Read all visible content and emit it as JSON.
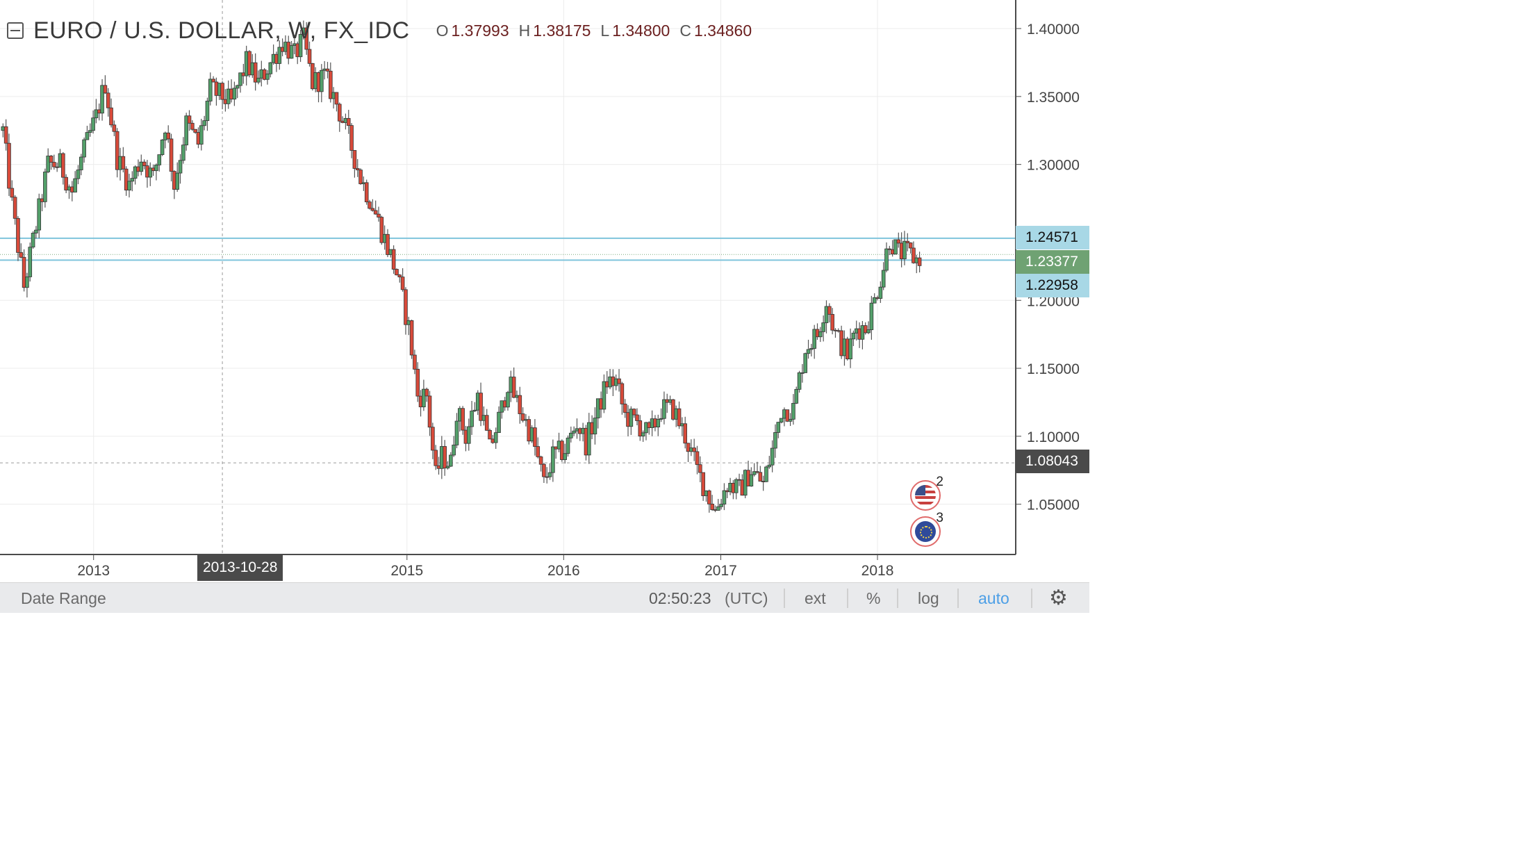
{
  "header": {
    "symbol_title": "EURO / U.S. DOLLAR, W, FX_IDC",
    "open_label": "O",
    "open_value": "1.37993",
    "high_label": "H",
    "high_value": "1.38175",
    "low_label": "L",
    "low_value": "1.34800",
    "close_label": "C",
    "close_value": "1.34860"
  },
  "price_labels": {
    "upper_line": "1.24571",
    "current_price": "1.23377",
    "lower_line": "1.22958",
    "crosshair_price": "1.08043"
  },
  "crosshair_date": "2013-10-28",
  "bottom_bar": {
    "date_range": "Date Range",
    "time": "02:50:23",
    "timezone": "(UTC)",
    "ext": "ext",
    "percent": "%",
    "log": "log",
    "auto": "auto",
    "settings_icon": "gear-icon"
  },
  "events": [
    {
      "flag": "us-flag-icon",
      "count": "2"
    },
    {
      "flag": "eu-flag-icon",
      "count": "3"
    }
  ],
  "colors": {
    "up": "#53a06a",
    "down": "#d84a3a",
    "wick": "#555555",
    "hline": "#7fc4dc",
    "current_bg": "#6fa273",
    "hline_label_bg": "#a8d8e6",
    "crosshair_bg": "#4a4a4a",
    "auto_color": "#4d9fe6"
  },
  "chart_data": {
    "type": "candlestick",
    "title": "EURO / U.S. DOLLAR, W, FX_IDC",
    "interval": "weekly",
    "x_tick_labels": [
      "2013",
      "2015",
      "2016",
      "2017",
      "2018"
    ],
    "y_tick_labels": [
      "1.40000",
      "1.35000",
      "1.30000",
      "1.20000",
      "1.15000",
      "1.10000",
      "1.05000"
    ],
    "ylim": [
      1.013,
      1.421
    ],
    "xlim": [
      "2012-05-28",
      "2018-11-19"
    ],
    "grid": true,
    "scale": "auto",
    "horizontal_lines": [
      1.24571,
      1.22958
    ],
    "current_price": 1.23377,
    "crosshair": {
      "date": "2013-10-28",
      "price": 1.08043
    },
    "close_path": [
      [
        "2012-06-04",
        1.325
      ],
      [
        "2012-06-25",
        1.27
      ],
      [
        "2012-07-23",
        1.21
      ],
      [
        "2012-08-20",
        1.255
      ],
      [
        "2012-09-17",
        1.3
      ],
      [
        "2012-10-15",
        1.3
      ],
      [
        "2012-11-12",
        1.28
      ],
      [
        "2012-12-10",
        1.31
      ],
      [
        "2013-01-07",
        1.335
      ],
      [
        "2013-01-28",
        1.36
      ],
      [
        "2013-02-25",
        1.305
      ],
      [
        "2013-03-25",
        1.285
      ],
      [
        "2013-04-22",
        1.305
      ],
      [
        "2013-05-20",
        1.29
      ],
      [
        "2013-06-17",
        1.33
      ],
      [
        "2013-07-08",
        1.285
      ],
      [
        "2013-08-05",
        1.33
      ],
      [
        "2013-09-02",
        1.315
      ],
      [
        "2013-09-30",
        1.355
      ],
      [
        "2013-10-28",
        1.35
      ],
      [
        "2013-11-18",
        1.345
      ],
      [
        "2013-12-23",
        1.375
      ],
      [
        "2014-01-20",
        1.36
      ],
      [
        "2014-02-17",
        1.375
      ],
      [
        "2014-03-17",
        1.39
      ],
      [
        "2014-04-14",
        1.38
      ],
      [
        "2014-05-05",
        1.392
      ],
      [
        "2014-05-26",
        1.36
      ],
      [
        "2014-06-23",
        1.365
      ],
      [
        "2014-07-21",
        1.345
      ],
      [
        "2014-08-18",
        1.32
      ],
      [
        "2014-09-15",
        1.29
      ],
      [
        "2014-10-13",
        1.27
      ],
      [
        "2014-11-10",
        1.245
      ],
      [
        "2014-12-08",
        1.22
      ],
      [
        "2015-01-05",
        1.18
      ],
      [
        "2015-01-26",
        1.13
      ],
      [
        "2015-02-16",
        1.13
      ],
      [
        "2015-03-09",
        1.07
      ],
      [
        "2015-03-23",
        1.085
      ],
      [
        "2015-04-13",
        1.08
      ],
      [
        "2015-04-27",
        1.12
      ],
      [
        "2015-05-18",
        1.1
      ],
      [
        "2015-06-15",
        1.13
      ],
      [
        "2015-07-13",
        1.09
      ],
      [
        "2015-08-10",
        1.12
      ],
      [
        "2015-08-24",
        1.14
      ],
      [
        "2015-09-21",
        1.12
      ],
      [
        "2015-10-19",
        1.1
      ],
      [
        "2015-11-16",
        1.065
      ],
      [
        "2015-12-07",
        1.085
      ],
      [
        "2016-01-04",
        1.09
      ],
      [
        "2016-02-01",
        1.11
      ],
      [
        "2016-02-22",
        1.095
      ],
      [
        "2016-03-21",
        1.12
      ],
      [
        "2016-04-11",
        1.14
      ],
      [
        "2016-05-02",
        1.14
      ],
      [
        "2016-05-23",
        1.115
      ],
      [
        "2016-06-20",
        1.11
      ],
      [
        "2016-07-18",
        1.1
      ],
      [
        "2016-08-15",
        1.12
      ],
      [
        "2016-09-12",
        1.12
      ],
      [
        "2016-10-10",
        1.1
      ],
      [
        "2016-11-07",
        1.075
      ],
      [
        "2016-12-05",
        1.055
      ],
      [
        "2016-12-19",
        1.045
      ],
      [
        "2017-01-16",
        1.065
      ],
      [
        "2017-02-13",
        1.06
      ],
      [
        "2017-03-13",
        1.075
      ],
      [
        "2017-04-10",
        1.065
      ],
      [
        "2017-05-01",
        1.09
      ],
      [
        "2017-05-22",
        1.12
      ],
      [
        "2017-06-19",
        1.12
      ],
      [
        "2017-07-17",
        1.165
      ],
      [
        "2017-08-14",
        1.175
      ],
      [
        "2017-09-04",
        1.2
      ],
      [
        "2017-09-25",
        1.175
      ],
      [
        "2017-10-23",
        1.16
      ],
      [
        "2017-11-13",
        1.18
      ],
      [
        "2017-12-04",
        1.18
      ],
      [
        "2017-12-25",
        1.2
      ],
      [
        "2018-01-15",
        1.225
      ],
      [
        "2018-01-29",
        1.245
      ],
      [
        "2018-02-19",
        1.235
      ],
      [
        "2018-03-12",
        1.235
      ],
      [
        "2018-04-02",
        1.23
      ],
      [
        "2018-04-16",
        1.23377
      ]
    ]
  }
}
